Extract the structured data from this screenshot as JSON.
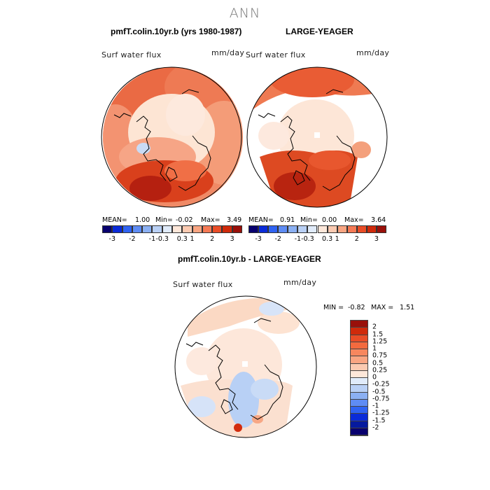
{
  "page_title": "ANN",
  "colors": {
    "palette": [
      "#08006e",
      "#0a2bd8",
      "#2f63f2",
      "#5e8cf4",
      "#8bb0f3",
      "#b9d0f5",
      "#e0ebfa",
      "#fde7d9",
      "#fbcab1",
      "#f9a582",
      "#f57a55",
      "#e94d27",
      "#cf2a0b",
      "#99100a"
    ],
    "continent_outline": "#000000"
  },
  "panels": {
    "top_left": {
      "title": "pmfT.colin.10yr.b (yrs 1980-1987)",
      "variable": "Surf water flux",
      "units": "mm/day",
      "mean_label": "MEAN=",
      "mean": "1.00",
      "min_label": "Min=",
      "min": "-0.02",
      "max_label": "Max=",
      "max": "3.49"
    },
    "top_right": {
      "title": "LARGE-YEAGER",
      "variable": "Surf water flux",
      "units": "mm/day",
      "mean_label": "MEAN=",
      "mean": "0.91",
      "min_label": "Min=",
      "min": "0.00",
      "max_label": "Max=",
      "max": "3.64"
    },
    "bottom": {
      "title": "pmfT.colin.10yr.b - LARGE-YEAGER",
      "variable": "Surf water flux",
      "units": "mm/day",
      "min_label": "MIN =",
      "min": "-0.82",
      "max_label": "MAX =",
      "max": "1.51"
    }
  },
  "top_colorbar_ticks": [
    "-3",
    "-2",
    "-1",
    "-0.3",
    "0.3",
    "1",
    "2",
    "3"
  ],
  "diff_colorbar_labels": [
    "2",
    "1.5",
    "1.25",
    "1",
    "0.75",
    "0.5",
    "0.25",
    "0",
    "-0.25",
    "-0.5",
    "-0.75",
    "-1",
    "-1.25",
    "-1.5",
    "-2"
  ]
}
